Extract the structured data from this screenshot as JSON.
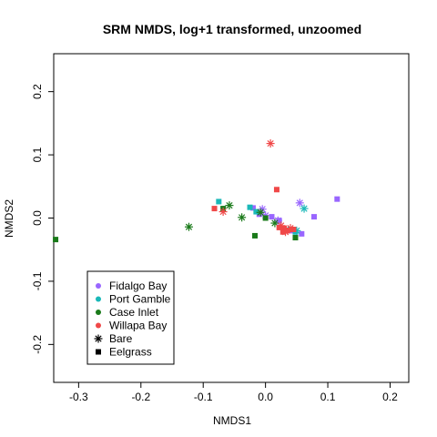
{
  "chart_data": {
    "type": "scatter",
    "title": "SRM NMDS, log+1 transformed, unzoomed",
    "xlabel": "NMDS1",
    "ylabel": "NMDS2",
    "xlim": [
      -0.34,
      0.23
    ],
    "ylim": [
      -0.26,
      0.26
    ],
    "xticks": [
      -0.3,
      -0.2,
      -0.1,
      0.0,
      0.1,
      0.2
    ],
    "xtick_labels": [
      "-0.3",
      "-0.2",
      "-0.1",
      "0.0",
      "0.1",
      "0.2"
    ],
    "yticks": [
      -0.2,
      -0.1,
      0.0,
      0.1,
      0.2
    ],
    "ytick_labels": [
      "-0.2",
      "-0.1",
      "0.0",
      "0.1",
      "0.2"
    ],
    "grid": false,
    "legend_position": "bottom-left",
    "colors": {
      "Fidalgo Bay": "#9966ff",
      "Port Gamble": "#1ab8b8",
      "Case Inlet": "#1a7a1a",
      "Willapa Bay": "#f04848",
      "Eelgrass legend": "#000000"
    },
    "legend": [
      {
        "label": "Fidalgo Bay",
        "marker": "dot",
        "color": "#9966ff"
      },
      {
        "label": "Port Gamble",
        "marker": "dot",
        "color": "#1ab8b8"
      },
      {
        "label": "Case Inlet",
        "marker": "dot",
        "color": "#1a7a1a"
      },
      {
        "label": "Willapa Bay",
        "marker": "dot",
        "color": "#f04848"
      },
      {
        "label": "Bare",
        "marker": "asterisk",
        "color": "#000000"
      },
      {
        "label": "Eelgrass",
        "marker": "square",
        "color": "#000000"
      }
    ],
    "series": [
      {
        "site": "Fidalgo Bay",
        "habitat": "Eelgrass",
        "marker": "square",
        "color": "#9966ff",
        "points": [
          [
            0.115,
            0.03
          ],
          [
            0.078,
            0.002
          ],
          [
            0.058,
            -0.025
          ],
          [
            0.022,
            -0.004
          ],
          [
            0.01,
            0.002
          ],
          [
            -0.02,
            0.016
          ],
          [
            -0.01,
            0.006
          ],
          [
            0.04,
            -0.02
          ]
        ]
      },
      {
        "site": "Fidalgo Bay",
        "habitat": "Bare",
        "marker": "asterisk",
        "color": "#9966ff",
        "points": [
          [
            0.055,
            0.024
          ],
          [
            -0.005,
            0.014
          ],
          [
            0.0,
            0.004
          ],
          [
            0.02,
            -0.004
          ]
        ]
      },
      {
        "site": "Port Gamble",
        "habitat": "Eelgrass",
        "marker": "square",
        "color": "#1ab8b8",
        "points": [
          [
            -0.075,
            0.026
          ],
          [
            -0.025,
            0.017
          ],
          [
            -0.015,
            0.01
          ],
          [
            0.04,
            -0.018
          ],
          [
            0.048,
            -0.022
          ]
        ]
      },
      {
        "site": "Port Gamble",
        "habitat": "Bare",
        "marker": "asterisk",
        "color": "#1ab8b8",
        "points": [
          [
            0.062,
            0.015
          ],
          [
            0.05,
            -0.02
          ]
        ]
      },
      {
        "site": "Case Inlet",
        "habitat": "Eelgrass",
        "marker": "square",
        "color": "#1a7a1a",
        "points": [
          [
            -0.337,
            -0.034
          ],
          [
            -0.068,
            0.015
          ],
          [
            -0.017,
            -0.028
          ],
          [
            0.048,
            -0.031
          ],
          [
            0.0,
            0.0
          ]
        ]
      },
      {
        "site": "Case Inlet",
        "habitat": "Bare",
        "marker": "asterisk",
        "color": "#1a7a1a",
        "points": [
          [
            -0.123,
            -0.014
          ],
          [
            -0.058,
            0.02
          ],
          [
            -0.038,
            0.001
          ],
          [
            -0.008,
            0.009
          ],
          [
            0.015,
            -0.008
          ]
        ]
      },
      {
        "site": "Willapa Bay",
        "habitat": "Eelgrass",
        "marker": "square",
        "color": "#f04848",
        "points": [
          [
            0.018,
            0.045
          ],
          [
            -0.082,
            0.015
          ],
          [
            0.022,
            -0.015
          ],
          [
            0.03,
            -0.016
          ],
          [
            0.035,
            -0.02
          ],
          [
            0.028,
            -0.022
          ],
          [
            0.045,
            -0.018
          ]
        ]
      },
      {
        "site": "Willapa Bay",
        "habitat": "Bare",
        "marker": "asterisk",
        "color": "#f04848",
        "points": [
          [
            0.008,
            0.118
          ],
          [
            -0.068,
            0.01
          ],
          [
            0.025,
            -0.012
          ],
          [
            0.04,
            -0.016
          ],
          [
            0.032,
            -0.022
          ]
        ]
      }
    ]
  }
}
